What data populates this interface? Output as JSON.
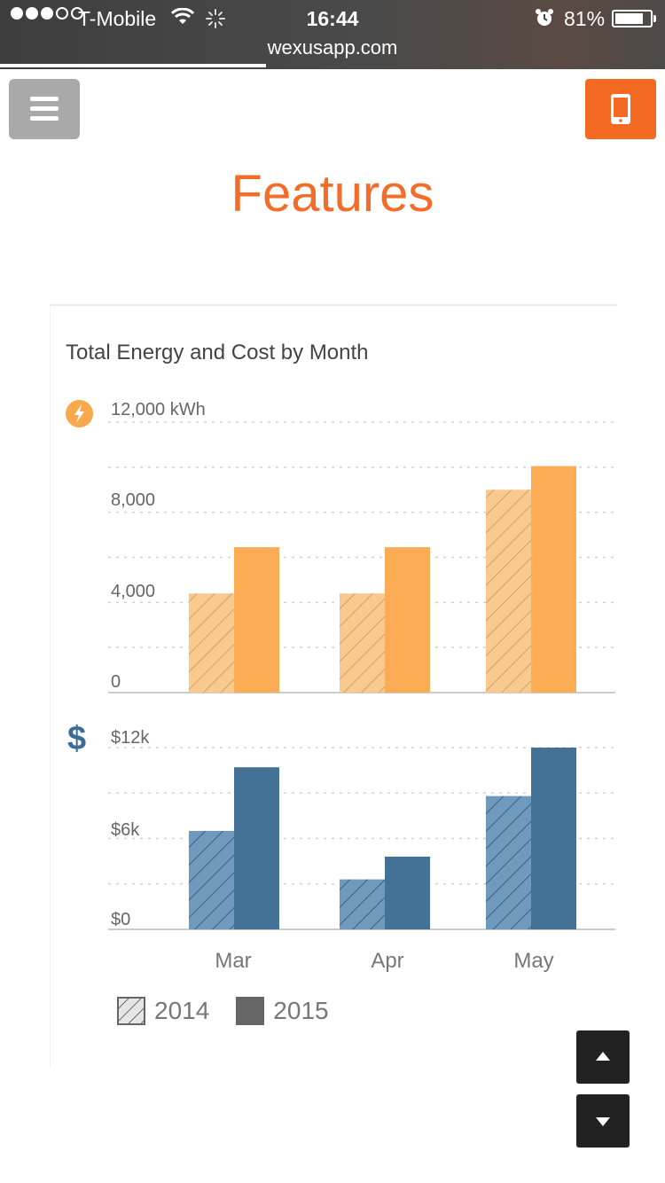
{
  "status_bar": {
    "carrier": "T-Mobile",
    "time": "16:44",
    "battery_percent": "81%",
    "battery_level": 0.81,
    "signal_bars_filled": 3,
    "signal_bars_total": 5,
    "icons": [
      "wifi-icon",
      "loading-spinner-icon",
      "alarm-icon",
      "battery-icon"
    ]
  },
  "browser": {
    "url": "wexusapp.com",
    "load_progress": 0.4
  },
  "header": {
    "menu_icon": "hamburger-icon",
    "mobile_icon": "mobile-phone-icon",
    "title": "Features"
  },
  "colors": {
    "accent_orange": "#f36d2a",
    "energy_bar": "#fbac54",
    "energy_bar_2014": "#f9c98e",
    "cost_bar": "#447296",
    "cost_bar_2014": "#6f9abd",
    "menu_gray": "#a9a9a9"
  },
  "chart_data": [
    {
      "type": "bar",
      "title": "Total Energy and Cost by Month",
      "icon": "lightning-bolt-icon",
      "categories": [
        "Mar",
        "Apr",
        "May"
      ],
      "series": [
        {
          "name": "2014",
          "values": [
            4400,
            4400,
            9000
          ]
        },
        {
          "name": "2015",
          "values": [
            6450,
            6450,
            10050
          ]
        }
      ],
      "ylim": [
        0,
        12000
      ],
      "y_ticks": [
        "12,000 kWh",
        "8,000",
        "4,000",
        "0"
      ],
      "grid": true
    },
    {
      "type": "bar",
      "icon": "dollar-icon",
      "icon_text": "$",
      "categories": [
        "Mar",
        "Apr",
        "May"
      ],
      "series": [
        {
          "name": "2014",
          "values": [
            6500,
            3300,
            8800
          ]
        },
        {
          "name": "2015",
          "values": [
            10700,
            4800,
            12000
          ]
        }
      ],
      "ylim": [
        0,
        12000
      ],
      "y_ticks": [
        "$12k",
        "$6k",
        "$0"
      ],
      "grid": true
    }
  ],
  "legend": {
    "items": [
      {
        "label": "2014",
        "style": "hatched"
      },
      {
        "label": "2015",
        "style": "solid"
      }
    ]
  },
  "scroll_controls": {
    "up_icon": "arrow-up-icon",
    "down_icon": "arrow-down-icon"
  }
}
